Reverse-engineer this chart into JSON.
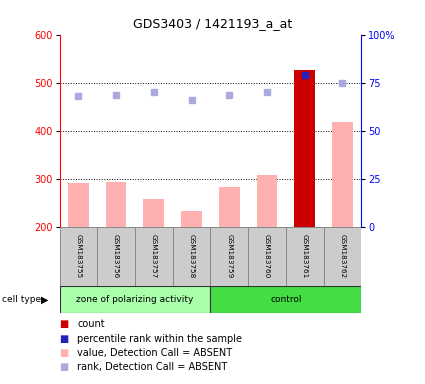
{
  "title": "GDS3403 / 1421193_a_at",
  "samples": [
    "GSM183755",
    "GSM183756",
    "GSM183757",
    "GSM183758",
    "GSM183759",
    "GSM183760",
    "GSM183761",
    "GSM183762"
  ],
  "bar_values": [
    290,
    292,
    257,
    232,
    283,
    307,
    527,
    418
  ],
  "bar_colors": [
    "#ffb0b0",
    "#ffb0b0",
    "#ffb0b0",
    "#ffb0b0",
    "#ffb0b0",
    "#ffb0b0",
    "#cc0000",
    "#ffb0b0"
  ],
  "rank_dots_left_axis": [
    473,
    474,
    480,
    463,
    475,
    480,
    515,
    500
  ],
  "rank_dot_colors": [
    "#aaaadd",
    "#aaaadd",
    "#aaaadd",
    "#aaaadd",
    "#aaaadd",
    "#aaaadd",
    "#2222bb",
    "#aaaadd"
  ],
  "ylim_left": [
    200,
    600
  ],
  "ylim_right": [
    0,
    100
  ],
  "yticks_left": [
    200,
    300,
    400,
    500,
    600
  ],
  "yticks_right": [
    0,
    25,
    50,
    75,
    100
  ],
  "ytick_labels_right": [
    "0",
    "25",
    "50",
    "75",
    "100%"
  ],
  "hlines": [
    300,
    400,
    500
  ],
  "group1_label": "zone of polarizing activity",
  "group2_label": "control",
  "group1_count": 4,
  "group2_count": 4,
  "legend_items": [
    {
      "label": "count",
      "color": "#cc0000"
    },
    {
      "label": "percentile rank within the sample",
      "color": "#2222bb"
    },
    {
      "label": "value, Detection Call = ABSENT",
      "color": "#ffb0b0"
    },
    {
      "label": "rank, Detection Call = ABSENT",
      "color": "#aaaadd"
    }
  ],
  "cell_type_label": "cell type",
  "bar_width": 0.55,
  "group1_bg": "#aaffaa",
  "group2_bg": "#44dd44",
  "sample_bg": "#cccccc",
  "title_fontsize": 9,
  "axis_fontsize": 7,
  "label_fontsize": 6,
  "legend_fontsize": 7
}
